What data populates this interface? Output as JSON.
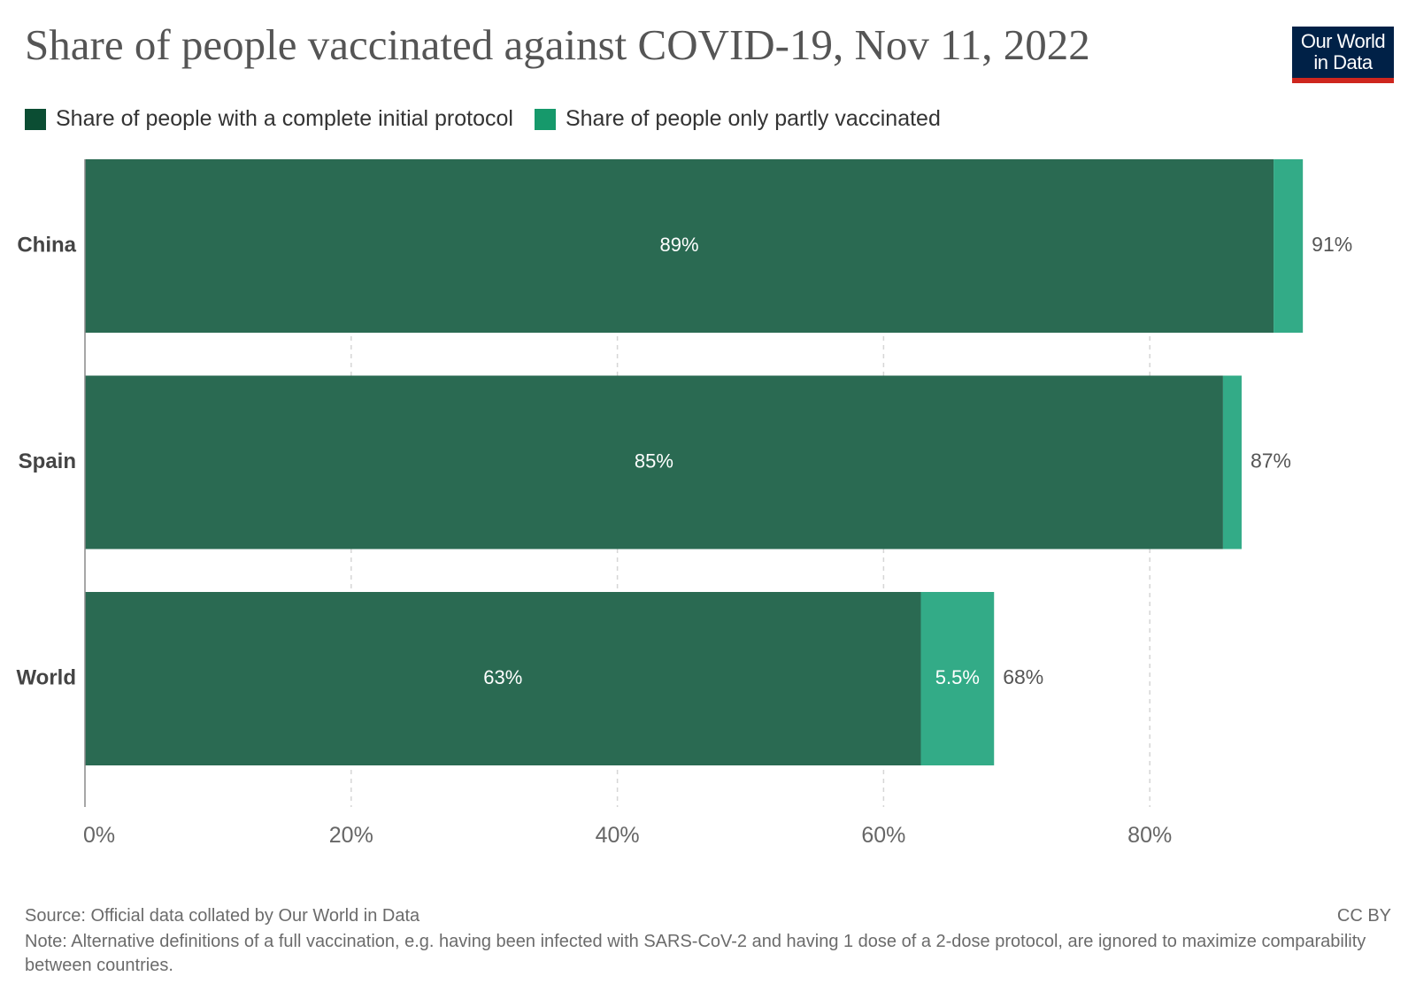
{
  "title": "Share of people vaccinated against COVID-19, Nov 11, 2022",
  "logo": {
    "line1": "Our World",
    "line2": "in Data"
  },
  "legend": [
    {
      "label": "Share of people with a complete initial protocol",
      "color": "#0b4d33"
    },
    {
      "label": "Share of people only partly vaccinated",
      "color": "#16996b"
    }
  ],
  "footer": {
    "source": "Source: Official data collated by Our World in Data",
    "license": "CC BY",
    "note": "Note: Alternative definitions of a full vaccination, e.g. having been infected with SARS-CoV-2 and having 1 dose of a 2-dose protocol, are ignored to maximize comparability between countries."
  },
  "chart_data": {
    "type": "bar",
    "orientation": "horizontal",
    "stacked": true,
    "categories": [
      "China",
      "Spain",
      "World"
    ],
    "series": [
      {
        "name": "Share of people with a complete initial protocol",
        "values": [
          89.3,
          85.5,
          62.8
        ],
        "labels": [
          "89%",
          "85%",
          "63%"
        ],
        "color": "#2a6a52"
      },
      {
        "name": "Share of people only partly vaccinated",
        "values": [
          2.2,
          1.4,
          5.5
        ],
        "labels": [
          "",
          "",
          "5.5%"
        ],
        "color": "#33ab87"
      }
    ],
    "totals": [
      "91%",
      "87%",
      "68%"
    ],
    "xlim": [
      0,
      90
    ],
    "xticks": [
      0,
      20,
      40,
      60,
      80
    ],
    "xtick_labels": [
      "0%",
      "20%",
      "40%",
      "60%",
      "80%"
    ],
    "grid": "vertical dashed",
    "legend_position": "top-left"
  }
}
